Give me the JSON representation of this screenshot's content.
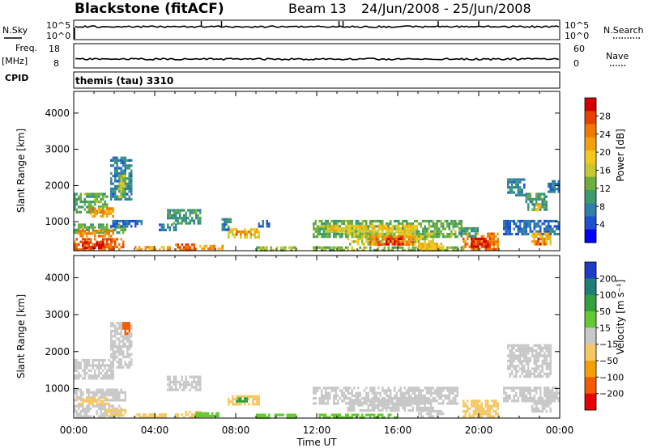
{
  "header": {
    "station": "Blackstone (fitACF)",
    "beam": "Beam 13",
    "dates": "24/Jun/2008 - 25/Jun/2008"
  },
  "labels": {
    "nsky": "N.Sky",
    "nsearch": "N.Search",
    "freq_line1": "Freq.",
    "freq_line2": "[MHz]",
    "nave": "Nave",
    "cpid": "CPID",
    "cpid_value": "themis (tau) 3310",
    "xlabel": "Time UT",
    "power_colorbar_label": "Power [dB]",
    "velocity_colorbar_label": "Velocity [m s⁻¹]"
  },
  "chart_data": [
    {
      "type": "line",
      "panel": "noise",
      "x_range_hours": [
        0,
        24
      ],
      "left_ticks": [
        "10^5",
        "10^0"
      ],
      "right_ticks": [
        "10^5",
        "10^0"
      ],
      "left_label": "N.Sky",
      "right_label": "N.Search"
    },
    {
      "type": "line",
      "panel": "frequency",
      "x_range_hours": [
        0,
        24
      ],
      "left_ticks": [
        "18",
        "8"
      ],
      "right_ticks": [
        "60",
        "0"
      ],
      "left_label": "Freq. [MHz]",
      "right_label": "Nave"
    },
    {
      "type": "heatmap",
      "panel": "power",
      "xlabel": "Time UT",
      "ylabel": "Slant Range [km]",
      "ylim": [
        200,
        4600
      ],
      "xlim_hours": [
        0,
        24
      ],
      "y_ticks": [
        1000,
        2000,
        3000,
        4000
      ],
      "x_ticks": [
        "00:00",
        "04:00",
        "08:00",
        "12:00",
        "16:00",
        "20:00",
        "00:00"
      ],
      "colorbar": {
        "label": "Power [dB]",
        "range": [
          0,
          32
        ],
        "ticks": [
          4,
          8,
          12,
          16,
          20,
          24,
          28
        ],
        "colors": [
          "#0000ff",
          "#1e50d2",
          "#2e7fa8",
          "#3d9a6f",
          "#6fae3a",
          "#c8c832",
          "#f5c81e",
          "#f5a00a",
          "#f07800",
          "#e64100",
          "#d20000"
        ]
      },
      "regions": [
        {
          "t": [
            0.0,
            1.7
          ],
          "r": [
            1250,
            1800
          ],
          "v": 12
        },
        {
          "t": [
            0.8,
            2.0
          ],
          "r": [
            1150,
            1400
          ],
          "v": 22
        },
        {
          "t": [
            1.8,
            2.9
          ],
          "r": [
            1600,
            2800
          ],
          "v": 8
        },
        {
          "t": [
            2.2,
            2.6
          ],
          "r": [
            1700,
            2300
          ],
          "v": 16
        },
        {
          "t": [
            0.0,
            2.6
          ],
          "r": [
            700,
            950
          ],
          "v": 12
        },
        {
          "t": [
            0.2,
            2.0
          ],
          "r": [
            580,
            780
          ],
          "v": 24
        },
        {
          "t": [
            0.0,
            2.5
          ],
          "r": [
            250,
            550
          ],
          "v": 26
        },
        {
          "t": [
            0.4,
            1.5
          ],
          "r": [
            300,
            460
          ],
          "v": 30
        },
        {
          "t": [
            1.8,
            3.4
          ],
          "r": [
            850,
            1050
          ],
          "v": 6
        },
        {
          "t": [
            3.0,
            4.8
          ],
          "r": [
            230,
            330
          ],
          "v": 22
        },
        {
          "t": [
            4.2,
            5.1
          ],
          "r": [
            750,
            950
          ],
          "v": 8
        },
        {
          "t": [
            4.6,
            6.2
          ],
          "r": [
            950,
            1350
          ],
          "v": 10
        },
        {
          "t": [
            5.0,
            6.0
          ],
          "r": [
            250,
            400
          ],
          "v": 26
        },
        {
          "t": [
            6.0,
            7.4
          ],
          "r": [
            220,
            360
          ],
          "v": 22
        },
        {
          "t": [
            7.3,
            7.8
          ],
          "r": [
            800,
            1100
          ],
          "v": 8
        },
        {
          "t": [
            7.6,
            9.2
          ],
          "r": [
            600,
            820
          ],
          "v": 18
        },
        {
          "t": [
            8.0,
            8.9
          ],
          "r": [
            650,
            760
          ],
          "v": 24
        },
        {
          "t": [
            9.1,
            9.7
          ],
          "r": [
            850,
            1050
          ],
          "v": 6
        },
        {
          "t": [
            9.0,
            11.0
          ],
          "r": [
            220,
            320
          ],
          "v": 14
        },
        {
          "t": [
            11.8,
            19.2
          ],
          "r": [
            620,
            1050
          ],
          "v": 12
        },
        {
          "t": [
            12.4,
            17.0
          ],
          "r": [
            750,
            920
          ],
          "v": 18
        },
        {
          "t": [
            13.5,
            17.8
          ],
          "r": [
            400,
            700
          ],
          "v": 16
        },
        {
          "t": [
            14.6,
            16.8
          ],
          "r": [
            350,
            620
          ],
          "v": 24
        },
        {
          "t": [
            15.3,
            16.3
          ],
          "r": [
            400,
            560
          ],
          "v": 28
        },
        {
          "t": [
            11.8,
            19.2
          ],
          "r": [
            220,
            320
          ],
          "v": 14
        },
        {
          "t": [
            17.0,
            18.3
          ],
          "r": [
            220,
            420
          ],
          "v": 20
        },
        {
          "t": [
            19.2,
            21.0
          ],
          "r": [
            250,
            700
          ],
          "v": 24
        },
        {
          "t": [
            19.6,
            20.6
          ],
          "r": [
            300,
            560
          ],
          "v": 30
        },
        {
          "t": [
            19.0,
            20.0
          ],
          "r": [
            620,
            850
          ],
          "v": 10
        },
        {
          "t": [
            21.4,
            22.3
          ],
          "r": [
            1700,
            2200
          ],
          "v": 8
        },
        {
          "t": [
            22.3,
            23.4
          ],
          "r": [
            1300,
            1800
          ],
          "v": 10
        },
        {
          "t": [
            22.8,
            23.2
          ],
          "r": [
            1350,
            1500
          ],
          "v": 20
        },
        {
          "t": [
            21.2,
            24.0
          ],
          "r": [
            650,
            1050
          ],
          "v": 6
        },
        {
          "t": [
            22.6,
            23.6
          ],
          "r": [
            350,
            700
          ],
          "v": 20
        },
        {
          "t": [
            22.8,
            23.3
          ],
          "r": [
            400,
            560
          ],
          "v": 28
        },
        {
          "t": [
            23.4,
            24.0
          ],
          "r": [
            1850,
            2150
          ],
          "v": 6
        }
      ]
    },
    {
      "type": "heatmap",
      "panel": "velocity",
      "xlabel": "Time UT",
      "ylabel": "Slant Range [km]",
      "ylim": [
        200,
        4600
      ],
      "xlim_hours": [
        0,
        24
      ],
      "y_ticks": [
        1000,
        2000,
        3000,
        4000
      ],
      "x_ticks": [
        "00:00",
        "04:00",
        "08:00",
        "12:00",
        "16:00",
        "20:00",
        "00:00"
      ],
      "colorbar": {
        "label": "Velocity [m s⁻¹]",
        "range": [
          -250,
          250
        ],
        "ticks": [
          -200,
          -100,
          -50,
          -15,
          15,
          50,
          100,
          200
        ],
        "colors": [
          "#e60000",
          "#f55a00",
          "#f5a000",
          "#f5c864",
          "#c8c8c8",
          "#64c832",
          "#32a03c",
          "#1e7f78",
          "#1e3cc8"
        ]
      },
      "regions": [
        {
          "t": [
            0.0,
            2.0
          ],
          "r": [
            1250,
            1800
          ],
          "v": 0
        },
        {
          "t": [
            1.8,
            2.9
          ],
          "r": [
            1600,
            2800
          ],
          "v": 0
        },
        {
          "t": [
            2.4,
            2.8
          ],
          "r": [
            2500,
            2800
          ],
          "v": -120
        },
        {
          "t": [
            0.0,
            2.6
          ],
          "r": [
            700,
            1000
          ],
          "v": 0
        },
        {
          "t": [
            0.2,
            1.8
          ],
          "r": [
            560,
            760
          ],
          "v": -30
        },
        {
          "t": [
            0.0,
            2.4
          ],
          "r": [
            250,
            560
          ],
          "v": 0
        },
        {
          "t": [
            1.6,
            2.6
          ],
          "r": [
            250,
            450
          ],
          "v": -40
        },
        {
          "t": [
            3.0,
            4.6
          ],
          "r": [
            230,
            330
          ],
          "v": -40
        },
        {
          "t": [
            4.6,
            6.2
          ],
          "r": [
            950,
            1350
          ],
          "v": 0
        },
        {
          "t": [
            5.0,
            6.2
          ],
          "r": [
            250,
            400
          ],
          "v": -40
        },
        {
          "t": [
            6.0,
            7.2
          ],
          "r": [
            220,
            360
          ],
          "v": 25
        },
        {
          "t": [
            7.6,
            9.2
          ],
          "r": [
            600,
            820
          ],
          "v": -30
        },
        {
          "t": [
            8.0,
            8.6
          ],
          "r": [
            650,
            760
          ],
          "v": 60
        },
        {
          "t": [
            9.0,
            11.0
          ],
          "r": [
            220,
            320
          ],
          "v": 25
        },
        {
          "t": [
            11.8,
            19.0
          ],
          "r": [
            620,
            1050
          ],
          "v": 0
        },
        {
          "t": [
            13.5,
            17.8
          ],
          "r": [
            380,
            720
          ],
          "v": 0
        },
        {
          "t": [
            12.0,
            16.0
          ],
          "r": [
            220,
            320
          ],
          "v": 25
        },
        {
          "t": [
            17.0,
            18.3
          ],
          "r": [
            220,
            420
          ],
          "v": 0
        },
        {
          "t": [
            19.2,
            21.0
          ],
          "r": [
            250,
            700
          ],
          "v": -30
        },
        {
          "t": [
            21.4,
            23.6
          ],
          "r": [
            1300,
            2200
          ],
          "v": 0
        },
        {
          "t": [
            21.2,
            24.0
          ],
          "r": [
            650,
            1050
          ],
          "v": 0
        },
        {
          "t": [
            22.6,
            23.6
          ],
          "r": [
            350,
            700
          ],
          "v": 0
        }
      ]
    }
  ]
}
